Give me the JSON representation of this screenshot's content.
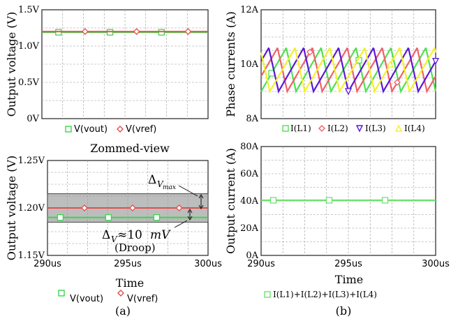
{
  "colors": {
    "vout": "#39d64a",
    "vref": "#e0504c",
    "iL1": "#4fe04f",
    "iL2": "#f0606a",
    "iL3": "#5a18d8",
    "iL4": "#f4f02a",
    "sum": "#6ee06e",
    "grid": "#9a9a9a",
    "band": "#bdbdbd"
  },
  "chart_data": [
    {
      "id": "a-top",
      "type": "line",
      "ylabel": "Output voltage (V)",
      "yticks": [
        "0V",
        "0.5V",
        "1.0V",
        "1.5V"
      ],
      "ylim": [
        0,
        1.5
      ],
      "grid": true,
      "series": [
        {
          "name": "V(vout)",
          "color_key": "vout",
          "marker": "square",
          "y": 1.19
        },
        {
          "name": "V(vref)",
          "color_key": "vref",
          "marker": "diamond",
          "y": 1.2
        }
      ],
      "legend_position": "bottom"
    },
    {
      "id": "a-bottom",
      "type": "line",
      "title": "Zommed-view",
      "xlabel": "Time",
      "ylabel": "Output voltage (V)",
      "xticks": [
        "290us",
        "295us",
        "300us"
      ],
      "xlim": [
        290,
        300
      ],
      "x_unit": "us",
      "yticks": [
        "1.15V",
        "1.20V",
        "1.25V"
      ],
      "ylim": [
        1.15,
        1.25
      ],
      "grid": true,
      "band": [
        1.185,
        1.215
      ],
      "series": [
        {
          "name": "V(vout)",
          "color_key": "vout",
          "marker": "square",
          "y": 1.19
        },
        {
          "name": "V(vref)",
          "color_key": "vref",
          "marker": "diamond",
          "y": 1.2
        }
      ],
      "annotations": {
        "dv_max_base": "Δ",
        "dv_max_sub": "V",
        "dv_max_subsub": "max",
        "dv_base": "Δ",
        "dv_sub": "V",
        "dv_rest": "≈10",
        "dv_unit": "mV",
        "droop": "(Droop)"
      },
      "legend_position": "bottom",
      "panel_label": "(a)"
    },
    {
      "id": "b-top",
      "type": "line",
      "ylabel": "Phase currents (A)",
      "yticks": [
        "8A",
        "10A",
        "12A"
      ],
      "ylim": [
        8,
        12
      ],
      "grid": true,
      "ripple": {
        "min": 9.0,
        "max": 10.6,
        "period_fraction": 0.2
      },
      "series": [
        {
          "name": "I(L1)",
          "color_key": "iL1",
          "marker": "square",
          "phase": 0.0
        },
        {
          "name": "I(L2)",
          "color_key": "iL2",
          "marker": "diamond",
          "phase": 0.25
        },
        {
          "name": "I(L3)",
          "color_key": "iL3",
          "marker": "triangle-down",
          "phase": 0.5
        },
        {
          "name": "I(L4)",
          "color_key": "iL4",
          "marker": "triangle-up",
          "phase": 0.75
        }
      ],
      "legend_position": "bottom"
    },
    {
      "id": "b-bottom",
      "type": "line",
      "xlabel": "Time",
      "ylabel": "Output current (A)",
      "xticks": [
        "290us",
        "295us",
        "300us"
      ],
      "xlim": [
        290,
        300
      ],
      "x_unit": "us",
      "yticks": [
        "0A",
        "20A",
        "40A",
        "60A",
        "80A"
      ],
      "ylim": [
        0,
        80
      ],
      "grid": true,
      "series": [
        {
          "name": "I(L1)+I(L2)+I(L3)+I(L4)",
          "color_key": "sum",
          "marker": "square",
          "y": 40.5
        }
      ],
      "legend_position": "bottom",
      "panel_label": "(b)"
    }
  ]
}
